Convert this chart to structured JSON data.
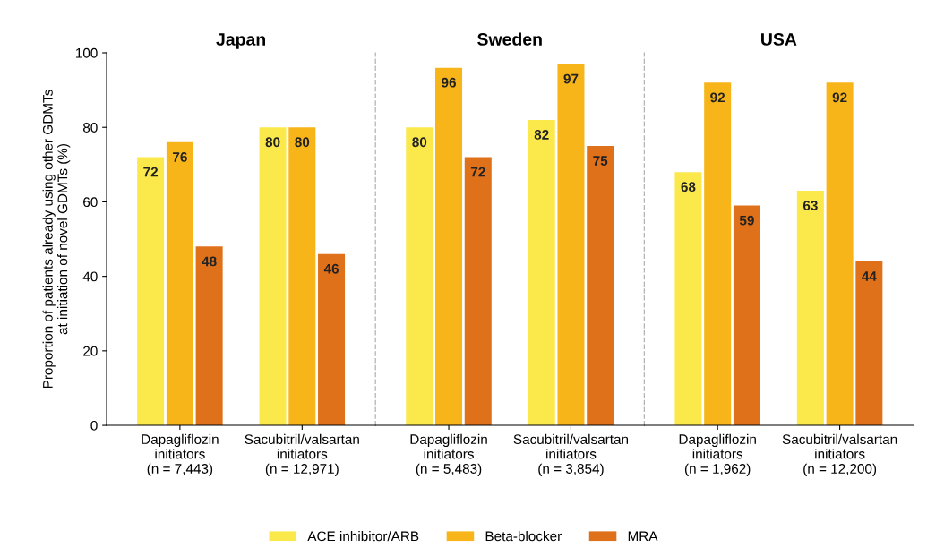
{
  "chart_data": [
    {
      "type": "bar",
      "title": "Japan",
      "ylabel": "Proportion of patients already using other GDMTs\nat initiation of novel GDMTs (%)",
      "categories": [
        "Dapagliflozin\ninitiators\n(n = 7,443)",
        "Sacubitril/valsartan\ninitiators\n(n = 12,971)"
      ],
      "series": [
        {
          "name": "ACE inhibitor/ARB",
          "color": "#fbe94b",
          "values": [
            72,
            80
          ]
        },
        {
          "name": "Beta-blocker",
          "color": "#f7b519",
          "values": [
            76,
            80
          ]
        },
        {
          "name": "MRA",
          "color": "#e0711b",
          "values": [
            48,
            46
          ]
        }
      ],
      "ylim": [
        0,
        100
      ],
      "yticks": [
        0,
        20,
        40,
        60,
        80,
        100
      ],
      "data_labels": true,
      "legend": "bottom"
    },
    {
      "type": "bar",
      "title": "Sweden",
      "categories": [
        "Dapagliflozin\ninitiators\n(n = 5,483)",
        "Sacubitril/valsartan\ninitiators\n(n = 3,854)"
      ],
      "series": [
        {
          "color": "#fbe94b",
          "values": [
            80,
            82
          ]
        },
        {
          "color": "#f7b519",
          "values": [
            96,
            97
          ]
        },
        {
          "color": "#e0711b",
          "values": [
            72,
            75
          ]
        }
      ],
      "ylim": [
        0,
        100
      ],
      "yticks": [
        0,
        20,
        40,
        60,
        80,
        100
      ],
      "data_labels": true,
      "tick_labels": "x"
    },
    {
      "type": "bar",
      "title": "USA",
      "categories": [
        "Dapagliflozin\ninitiators\n(n = 1,962)",
        "Sacubitril/valsartan\ninitiators\n(n = 12,200)"
      ],
      "series": [
        {
          "color": "#fbe94b",
          "values": [
            68,
            63
          ]
        },
        {
          "color": "#f7b519",
          "values": [
            92,
            92
          ]
        },
        {
          "color": "#e0711b",
          "values": [
            59,
            44
          ]
        }
      ],
      "ylim": [
        0,
        100
      ],
      "yticks": [
        0,
        20,
        40,
        60,
        80,
        100
      ],
      "data_labels": true,
      "tick_labels": "x"
    }
  ]
}
